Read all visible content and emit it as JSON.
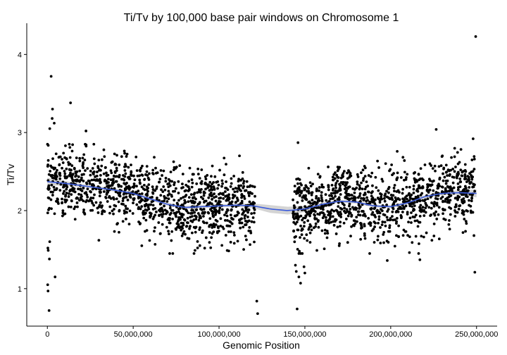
{
  "chart_data": {
    "type": "scatter",
    "title": "Ti/Tv by 100,000 base pair windows on Chromosome 1",
    "xlabel": "Genomic Position",
    "ylabel": "Ti/Tv",
    "xlim": [
      -12000000,
      262000000
    ],
    "ylim": [
      0.52,
      4.4
    ],
    "xticks": [
      {
        "value": 0,
        "label": "0"
      },
      {
        "value": 50000000,
        "label": "50,000,000"
      },
      {
        "value": 100000000,
        "label": "100,000,000"
      },
      {
        "value": 150000000,
        "label": "150,000,000"
      },
      {
        "value": 200000000,
        "label": "200,000,000"
      },
      {
        "value": 250000000,
        "label": "250,000,000"
      }
    ],
    "yticks": [
      {
        "value": 1,
        "label": "1"
      },
      {
        "value": 2,
        "label": "2"
      },
      {
        "value": 3,
        "label": "3"
      },
      {
        "value": 4,
        "label": "4"
      }
    ],
    "grid": false,
    "point_color": "#000000",
    "smooth": {
      "color": "#3b5bdb",
      "band_color": "#b0b0b0",
      "x": [
        0,
        10000000,
        20000000,
        30000000,
        40000000,
        50000000,
        60000000,
        70000000,
        80000000,
        90000000,
        100000000,
        110000000,
        120000000,
        130000000,
        140000000,
        150000000,
        160000000,
        170000000,
        180000000,
        190000000,
        200000000,
        210000000,
        220000000,
        230000000,
        240000000,
        250000000
      ],
      "y": [
        2.37,
        2.35,
        2.32,
        2.29,
        2.26,
        2.22,
        2.15,
        2.08,
        2.04,
        2.05,
        2.06,
        2.07,
        2.06,
        2.02,
        2.0,
        2.02,
        2.08,
        2.12,
        2.11,
        2.06,
        2.05,
        2.1,
        2.18,
        2.22,
        2.23,
        2.22
      ],
      "band_halfwidth": [
        0.05,
        0.03,
        0.02,
        0.02,
        0.02,
        0.02,
        0.02,
        0.02,
        0.02,
        0.02,
        0.02,
        0.02,
        0.03,
        0.05,
        0.05,
        0.04,
        0.02,
        0.02,
        0.02,
        0.02,
        0.02,
        0.02,
        0.02,
        0.02,
        0.03,
        0.05
      ]
    },
    "series": [
      {
        "name": "Ti/Tv",
        "segments": [
          {
            "x_start": 0,
            "x_end": 121000000,
            "n": 1200
          },
          {
            "x_start": 143000000,
            "x_end": 249000000,
            "n": 1060
          }
        ],
        "scatter_sd": 0.22,
        "outliers": [
          [
            200000,
            1.05
          ],
          [
            400000,
            0.97
          ],
          [
            300000,
            1.52
          ],
          [
            500000,
            1.49
          ],
          [
            1000000,
            0.72
          ],
          [
            2200000,
            3.72
          ],
          [
            3000000,
            3.3
          ],
          [
            2800000,
            3.18
          ],
          [
            1400000,
            3.05
          ],
          [
            4000000,
            3.12
          ],
          [
            13500000,
            3.38
          ],
          [
            1200000,
            1.38
          ],
          [
            4500000,
            1.15
          ],
          [
            22500000,
            3.02
          ],
          [
            122000000,
            0.84
          ],
          [
            122500000,
            0.68
          ],
          [
            145500000,
            0.74
          ],
          [
            146000000,
            2.87
          ],
          [
            144000000,
            1.6
          ],
          [
            144500000,
            1.3
          ],
          [
            145000000,
            1.22
          ],
          [
            146500000,
            1.15
          ],
          [
            147500000,
            1.07
          ],
          [
            148500000,
            1.45
          ],
          [
            149500000,
            1.28
          ],
          [
            150000000,
            1.2
          ],
          [
            226500000,
            3.04
          ],
          [
            248000000,
            2.92
          ],
          [
            249500000,
            4.23
          ],
          [
            249000000,
            1.21
          ],
          [
            248500000,
            1.68
          ],
          [
            224000000,
            1.62
          ],
          [
            217000000,
            1.37
          ],
          [
            198000000,
            1.36
          ],
          [
            170000000,
            1.55
          ],
          [
            157000000,
            1.49
          ],
          [
            30000000,
            1.62
          ],
          [
            55000000,
            1.55
          ],
          [
            86000000,
            1.49
          ]
        ]
      }
    ]
  }
}
